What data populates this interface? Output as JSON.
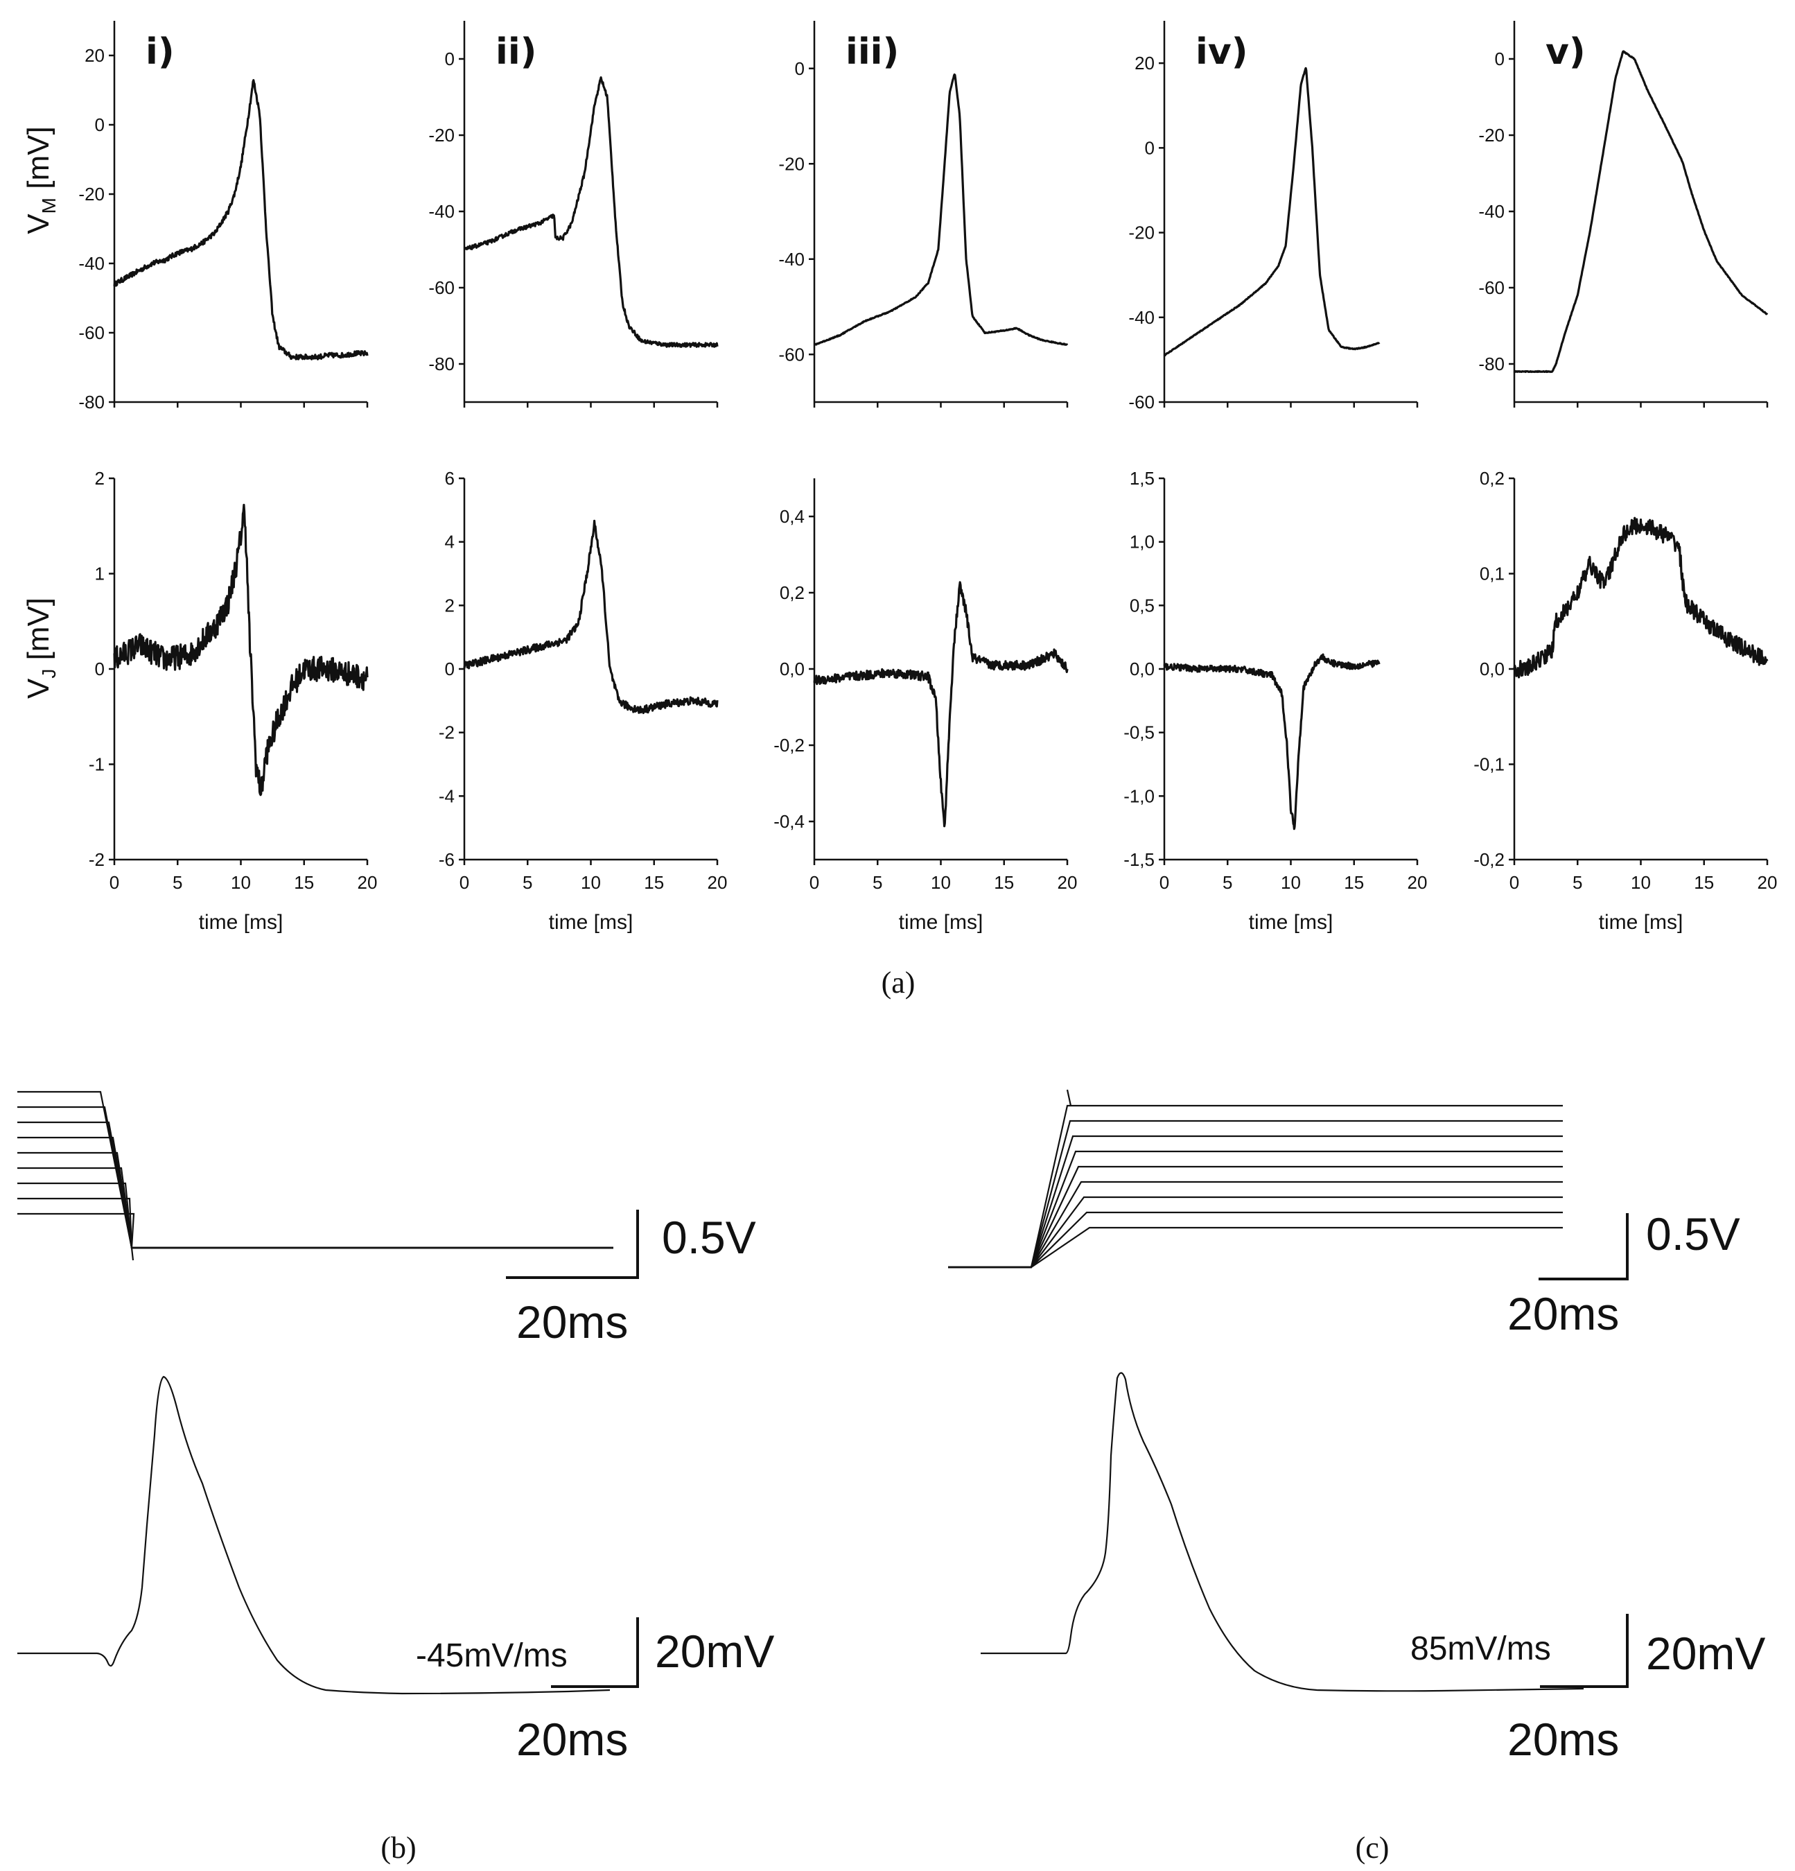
{
  "chart_data": {
    "type": "line",
    "panel_a": {
      "caption": "(a)",
      "top_ylabel": "V",
      "top_ylabel_sub": "M",
      "top_ylabel_unit": " [mV]",
      "bottom_ylabel": "V",
      "bottom_ylabel_sub": "J",
      "bottom_ylabel_unit": " [mV]",
      "xlabel": "time [ms]",
      "columns": [
        {
          "label": "i)",
          "xlim": [
            0,
            20
          ],
          "xticks": [
            "0",
            "5",
            "10",
            "15",
            "20"
          ],
          "top": {
            "ylim": [
              -80,
              30
            ],
            "yticks": [
              {
                "v": 20,
                "t": "20"
              },
              {
                "v": 0,
                "t": "0"
              },
              {
                "v": -20,
                "t": "-20"
              },
              {
                "v": -40,
                "t": "-40"
              },
              {
                "v": -60,
                "t": "-60"
              },
              {
                "v": -80,
                "t": "-80"
              }
            ],
            "x": [
              0,
              1,
              2,
              3,
              4,
              5,
              6,
              7,
              8,
              9,
              9.5,
              10,
              10.5,
              11,
              11.5,
              12,
              12.5,
              13,
              14,
              15,
              16,
              17,
              18,
              19,
              20
            ],
            "y": [
              -46,
              -44,
              -42,
              -40,
              -39,
              -37,
              -36,
              -34,
              -31,
              -25,
              -20,
              -12,
              0,
              13,
              3,
              -30,
              -55,
              -64,
              -67,
              -67,
              -67,
              -66.5,
              -66.5,
              -66,
              -66
            ],
            "noise": 0.7
          },
          "bottom": {
            "ylim": [
              -2,
              2
            ],
            "yticks": [
              {
                "v": 2,
                "t": "2"
              },
              {
                "v": 1,
                "t": "1"
              },
              {
                "v": 0,
                "t": "0"
              },
              {
                "v": -1,
                "t": "-1"
              },
              {
                "v": -2,
                "t": "-2"
              }
            ],
            "x": [
              0,
              2,
              4,
              6,
              8,
              9,
              9.8,
              10.3,
              10.7,
              11.2,
              11.6,
              12,
              13,
              14,
              15,
              17,
              20
            ],
            "y": [
              0.1,
              0.25,
              0.1,
              0.15,
              0.45,
              0.7,
              1.2,
              1.7,
              0.3,
              -1.0,
              -1.3,
              -0.9,
              -0.5,
              -0.2,
              0.0,
              0.0,
              -0.1
            ],
            "noise": 0.13
          }
        },
        {
          "label": "ii)",
          "xlim": [
            0,
            20
          ],
          "xticks": [
            "0",
            "5",
            "10",
            "15",
            "20"
          ],
          "top": {
            "ylim": [
              -90,
              10
            ],
            "yticks": [
              {
                "v": 0,
                "t": "0"
              },
              {
                "v": -20,
                "t": "-20"
              },
              {
                "v": -40,
                "t": "-40"
              },
              {
                "v": -60,
                "t": "-60"
              },
              {
                "v": -80,
                "t": "-80"
              }
            ],
            "x": [
              0,
              2,
              4,
              6,
              7.1,
              7.2,
              7.8,
              8.5,
              9.5,
              10.3,
              10.8,
              11.3,
              12,
              12.5,
              13,
              14,
              16,
              18,
              20
            ],
            "y": [
              -50,
              -48,
              -45,
              -43,
              -41,
              -47,
              -47,
              -43,
              -30,
              -12,
              -5,
              -10,
              -45,
              -64,
              -70,
              -74,
              -75,
              -75,
              -75
            ],
            "noise": 0.5
          },
          "bottom": {
            "ylim": [
              -6,
              6
            ],
            "yticks": [
              {
                "v": 6,
                "t": "6"
              },
              {
                "v": 4,
                "t": "4"
              },
              {
                "v": 2,
                "t": "2"
              },
              {
                "v": 0,
                "t": "0"
              },
              {
                "v": -2,
                "t": "-2"
              },
              {
                "v": -4,
                "t": "-4"
              },
              {
                "v": -6,
                "t": "-6"
              }
            ],
            "x": [
              0,
              2,
              4,
              6,
              8,
              9,
              9.7,
              10.3,
              10.9,
              11.5,
              12.2,
              13,
              14,
              16,
              18,
              20
            ],
            "y": [
              0.1,
              0.3,
              0.5,
              0.7,
              0.9,
              1.4,
              3.0,
              4.6,
              3.0,
              0.0,
              -1.0,
              -1.2,
              -1.3,
              -1.1,
              -1.0,
              -1.1
            ],
            "noise": 0.12
          }
        },
        {
          "label": "iii)",
          "xlim": [
            0,
            20
          ],
          "xticks": [
            "0",
            "5",
            "10",
            "15",
            "20"
          ],
          "top": {
            "ylim": [
              -70,
              10
            ],
            "yticks": [
              {
                "v": 0,
                "t": "0"
              },
              {
                "v": -20,
                "t": "-20"
              },
              {
                "v": -40,
                "t": "-40"
              },
              {
                "v": -60,
                "t": "-60"
              }
            ],
            "x": [
              0,
              2,
              4,
              6,
              8,
              9,
              9.8,
              10.3,
              10.7,
              11.1,
              11.5,
              12,
              12.5,
              13.5,
              15,
              16,
              17,
              18,
              20
            ],
            "y": [
              -58,
              -56,
              -53,
              -51,
              -48,
              -45,
              -38,
              -20,
              -5,
              -1,
              -10,
              -40,
              -52,
              -55.5,
              -55,
              -54.5,
              -56,
              -57,
              -58
            ],
            "noise": 0.1
          },
          "bottom": {
            "ylim": [
              -0.5,
              0.5
            ],
            "yticks": [
              {
                "v": 0.4,
                "t": "0,4"
              },
              {
                "v": 0.2,
                "t": "0,2"
              },
              {
                "v": 0,
                "t": "0,0"
              },
              {
                "v": -0.2,
                "t": "-0,2"
              },
              {
                "v": -0.4,
                "t": "-0,4"
              }
            ],
            "x": [
              0,
              3,
              6,
              9,
              9.6,
              10.0,
              10.3,
              10.6,
              11.0,
              11.5,
              12.0,
              12.5,
              14,
              17,
              19,
              20
            ],
            "y": [
              -0.03,
              -0.02,
              -0.01,
              -0.02,
              -0.08,
              -0.3,
              -0.42,
              -0.2,
              0.05,
              0.22,
              0.15,
              0.03,
              0.01,
              0.01,
              0.04,
              0.0
            ],
            "noise": 0.012
          }
        },
        {
          "label": "iv)",
          "xlim": [
            0,
            20
          ],
          "xticks": [
            "0",
            "5",
            "10",
            "15",
            "20"
          ],
          "top": {
            "ylim": [
              -60,
              30
            ],
            "yticks": [
              {
                "v": 20,
                "t": "20"
              },
              {
                "v": 0,
                "t": "0"
              },
              {
                "v": -20,
                "t": "-20"
              },
              {
                "v": -40,
                "t": "-40"
              },
              {
                "v": -60,
                "t": "-60"
              }
            ],
            "x": [
              0,
              2,
              4,
              6,
              8,
              9,
              9.6,
              10.2,
              10.8,
              11.2,
              11.7,
              12.3,
              13,
              14,
              15,
              16,
              17
            ],
            "y": [
              -49,
              -45,
              -41,
              -37,
              -32,
              -28,
              -23,
              -5,
              15,
              19,
              0,
              -30,
              -43,
              -47,
              -47.5,
              -47,
              -46
            ],
            "noise": 0.1
          },
          "bottom": {
            "ylim": [
              -1.5,
              1.5
            ],
            "yticks": [
              {
                "v": 1.5,
                "t": "1,5"
              },
              {
                "v": 1.0,
                "t": "1,0"
              },
              {
                "v": 0.5,
                "t": "0,5"
              },
              {
                "v": 0,
                "t": "0,0"
              },
              {
                "v": -0.5,
                "t": "-0,5"
              },
              {
                "v": -1.0,
                "t": "-1,0"
              },
              {
                "v": -1.5,
                "t": "-1,5"
              }
            ],
            "x": [
              0,
              3,
              6,
              8.5,
              9.3,
              9.7,
              10.0,
              10.3,
              10.6,
              11.0,
              11.5,
              12.0,
              12.5,
              13,
              15,
              17
            ],
            "y": [
              0.02,
              0.0,
              0.0,
              -0.05,
              -0.2,
              -0.6,
              -1.1,
              -1.25,
              -0.7,
              -0.15,
              -0.05,
              0.05,
              0.1,
              0.05,
              0.02,
              0.05
            ],
            "noise": 0.025
          }
        },
        {
          "label": "v)",
          "xlim": [
            0,
            20
          ],
          "xticks": [
            "0",
            "5",
            "10",
            "15",
            "20"
          ],
          "top": {
            "ylim": [
              -90,
              10
            ],
            "yticks": [
              {
                "v": 0,
                "t": "0"
              },
              {
                "v": -20,
                "t": "-20"
              },
              {
                "v": -40,
                "t": "-40"
              },
              {
                "v": -60,
                "t": "-60"
              },
              {
                "v": -80,
                "t": "-80"
              }
            ],
            "x": [
              0,
              3,
              3.3,
              4,
              5,
              6,
              7,
              8,
              8.6,
              9.5,
              10.5,
              12,
              13.3,
              14,
              15,
              16,
              18,
              20
            ],
            "y": [
              -82,
              -82,
              -80,
              -72,
              -62,
              -45,
              -25,
              -5,
              2,
              0,
              -8,
              -18,
              -27,
              -35,
              -45,
              -53,
              -62,
              -67
            ],
            "noise": 0.1
          },
          "bottom": {
            "ylim": [
              -0.2,
              0.2
            ],
            "yticks": [
              {
                "v": 0.2,
                "t": "0,2"
              },
              {
                "v": 0.1,
                "t": "0,1"
              },
              {
                "v": 0,
                "t": "0,0"
              },
              {
                "v": -0.1,
                "t": "-0,1"
              },
              {
                "v": -0.2,
                "t": "-0,2"
              }
            ],
            "x": [
              0,
              1,
              2,
              3,
              3.3,
              4,
              5,
              6,
              7,
              7.5,
              8.5,
              9.5,
              10.5,
              12,
              13,
              13.5,
              15,
              17,
              19,
              20
            ],
            "y": [
              0.0,
              0.0,
              0.01,
              0.02,
              0.05,
              0.06,
              0.08,
              0.11,
              0.09,
              0.1,
              0.14,
              0.15,
              0.15,
              0.14,
              0.13,
              0.07,
              0.05,
              0.03,
              0.015,
              0.01
            ],
            "noise": 0.009
          }
        }
      ]
    },
    "panel_b": {
      "caption": "(b)",
      "stim_scale_v": "0.5V",
      "stim_scale_t": "20ms",
      "resp_rate_label": "-45mV/ms",
      "resp_scale_v": "20mV",
      "resp_scale_t": "20ms",
      "stim_steps": 9
    },
    "panel_c": {
      "caption": "(c)",
      "stim_scale_v": "0.5V",
      "stim_scale_t": "20ms",
      "resp_rate_label": "85mV/ms",
      "resp_scale_v": "20mV",
      "resp_scale_t": "20ms",
      "stim_steps": 9
    }
  }
}
